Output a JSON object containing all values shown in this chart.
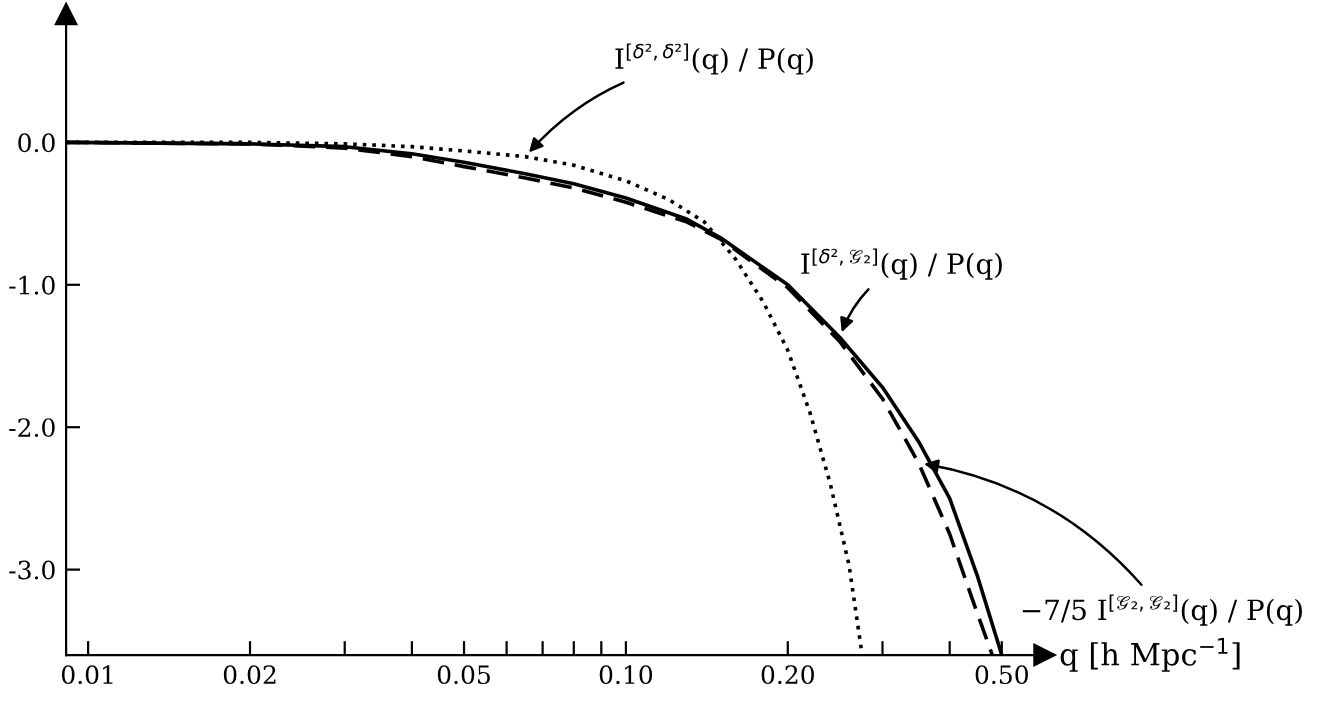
{
  "chart_data": {
    "type": "line",
    "xlabel": "q [h Mpc$^{−1}$]",
    "log": "x",
    "xlim": [
      0.0091,
      0.6
    ],
    "ylim": [
      -3.6,
      0.9
    ],
    "xticks": [
      0.01,
      0.02,
      {
        "value": 0.03,
        "label": null
      },
      {
        "value": 0.04,
        "label": null
      },
      0.05,
      {
        "value": 0.06,
        "label": null
      },
      {
        "value": 0.07,
        "label": null
      },
      {
        "value": 0.08,
        "label": null
      },
      {
        "value": 0.09,
        "label": null
      },
      {
        "value": 0.1,
        "label": "0.10"
      },
      {
        "value": 0.2,
        "label": "0.20"
      },
      {
        "value": 0.3,
        "label": null
      },
      {
        "value": 0.4,
        "label": null
      },
      {
        "value": 0.5,
        "label": "0.50"
      }
    ],
    "yticks": [
      {
        "value": 0,
        "label": "0.0"
      },
      {
        "value": -1,
        "label": "-1.0"
      },
      {
        "value": -2,
        "label": "-2.0"
      },
      {
        "value": -3,
        "label": "-3.0"
      }
    ],
    "grid": false,
    "legend": false,
    "series": [
      {
        "name": "I$^{[δ²,δ²]}$(q) / P(q)",
        "color": "#000000",
        "line_style": "dotted",
        "x": [
          0.0091,
          0.02,
          0.03,
          0.04,
          0.05,
          0.065,
          0.08,
          0.1,
          0.12,
          0.14,
          0.16,
          0.18,
          0.2,
          0.22,
          0.24,
          0.26,
          0.275
        ],
        "values": [
          0,
          0,
          -0.01,
          -0.03,
          -0.06,
          -0.1,
          -0.16,
          -0.27,
          -0.4,
          -0.56,
          -0.82,
          -1.12,
          -1.46,
          -1.9,
          -2.4,
          -2.97,
          -3.6
        ]
      },
      {
        "name": "I$^{[δ²,𝒢₂]}$(q) / P(q)",
        "color": "#000000",
        "line_style": "solid",
        "x": [
          0.0091,
          0.02,
          0.03,
          0.04,
          0.05,
          0.065,
          0.08,
          0.1,
          0.13,
          0.15,
          0.2,
          0.25,
          0.3,
          0.35,
          0.4,
          0.45,
          0.5
        ],
        "values": [
          0,
          -0.01,
          -0.03,
          -0.08,
          -0.14,
          -0.22,
          -0.29,
          -0.39,
          -0.54,
          -0.67,
          -1.0,
          -1.37,
          -1.72,
          -2.1,
          -2.5,
          -3.04,
          -3.6
        ]
      },
      {
        "name": "−7/5 I$^{[𝒢₂,𝒢₂]}$(q) / P(q)",
        "color": "#000000",
        "line_style": "dashed",
        "x": [
          0.0091,
          0.02,
          0.03,
          0.04,
          0.05,
          0.065,
          0.08,
          0.1,
          0.13,
          0.15,
          0.2,
          0.25,
          0.3,
          0.35,
          0.4,
          0.44,
          0.48
        ],
        "values": [
          0,
          -0.01,
          -0.04,
          -0.1,
          -0.17,
          -0.25,
          -0.32,
          -0.42,
          -0.56,
          -0.68,
          -1.02,
          -1.4,
          -1.8,
          -2.25,
          -2.75,
          -3.2,
          -3.6
        ]
      }
    ]
  }
}
